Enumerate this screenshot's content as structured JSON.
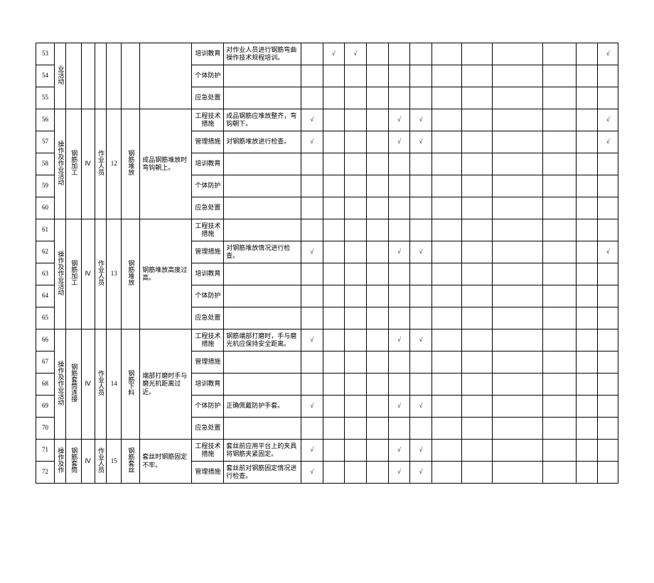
{
  "check": "√",
  "measure_types": {
    "eng": "工程技术措施",
    "mgmt": "管理措施",
    "train": "培训教育",
    "ppe": "个体防护",
    "emerg": "应急处置"
  },
  "common": {
    "activity": "操作及作业活动",
    "activity_short": "业活动",
    "role": "作业人员",
    "lvl": "Ⅳ"
  },
  "groups": [
    {
      "rows": [
        53,
        54,
        55
      ],
      "act_label": "业活动",
      "proc": "",
      "lvl": "",
      "role": "",
      "seq": "",
      "task": "",
      "haz": "",
      "measures": [
        {
          "type": "train",
          "desc": "对作业人员进行钢筋弯曲操作技术规程培训。",
          "checks": [
            0,
            1,
            1,
            0,
            0,
            0,
            0,
            0,
            0,
            0,
            0,
            1
          ]
        },
        {
          "type": "ppe",
          "desc": "",
          "checks": [
            0,
            0,
            0,
            0,
            0,
            0,
            0,
            0,
            0,
            0,
            0,
            0
          ]
        },
        {
          "type": "emerg",
          "desc": "",
          "checks": [
            0,
            0,
            0,
            0,
            0,
            0,
            0,
            0,
            0,
            0,
            0,
            0
          ]
        }
      ]
    },
    {
      "rows": [
        56,
        57,
        58,
        59,
        60
      ],
      "act_label": "操作及作业活动",
      "proc": "钢筋加工",
      "lvl": "Ⅳ",
      "role": "作业人员",
      "seq": "12",
      "task": "钢筋堆放",
      "haz": "成品钢筋堆放时弯钩朝上。",
      "measures": [
        {
          "type": "eng",
          "desc": "成品钢筋应堆放整齐，弯钩朝下。",
          "checks": [
            1,
            0,
            0,
            0,
            1,
            1,
            0,
            0,
            0,
            0,
            0,
            1
          ]
        },
        {
          "type": "mgmt",
          "desc": "对钢筋堆放进行检查。",
          "checks": [
            1,
            0,
            0,
            0,
            1,
            1,
            0,
            0,
            0,
            0,
            0,
            1
          ]
        },
        {
          "type": "train",
          "desc": "",
          "checks": [
            0,
            0,
            0,
            0,
            0,
            0,
            0,
            0,
            0,
            0,
            0,
            0
          ]
        },
        {
          "type": "ppe",
          "desc": "",
          "checks": [
            0,
            0,
            0,
            0,
            0,
            0,
            0,
            0,
            0,
            0,
            0,
            0
          ]
        },
        {
          "type": "emerg",
          "desc": "",
          "checks": [
            0,
            0,
            0,
            0,
            0,
            0,
            0,
            0,
            0,
            0,
            0,
            0
          ]
        }
      ]
    },
    {
      "rows": [
        61,
        62,
        63,
        64,
        65
      ],
      "act_label": "操作及作业活动",
      "proc": "钢筋加工",
      "lvl": "Ⅳ",
      "role": "作业人员",
      "seq": "13",
      "task": "钢筋堆放",
      "haz": "钢筋堆放高度过高。",
      "measures": [
        {
          "type": "eng",
          "desc": "",
          "checks": [
            0,
            0,
            0,
            0,
            0,
            0,
            0,
            0,
            0,
            0,
            0,
            0
          ]
        },
        {
          "type": "mgmt",
          "desc": "对钢筋堆放情况进行检查。",
          "checks": [
            1,
            0,
            0,
            0,
            1,
            1,
            0,
            0,
            0,
            0,
            0,
            1
          ]
        },
        {
          "type": "train",
          "desc": "",
          "checks": [
            0,
            0,
            0,
            0,
            0,
            0,
            0,
            0,
            0,
            0,
            0,
            0
          ]
        },
        {
          "type": "ppe",
          "desc": "",
          "checks": [
            0,
            0,
            0,
            0,
            0,
            0,
            0,
            0,
            0,
            0,
            0,
            0
          ]
        },
        {
          "type": "emerg",
          "desc": "",
          "checks": [
            0,
            0,
            0,
            0,
            0,
            0,
            0,
            0,
            0,
            0,
            0,
            0
          ]
        }
      ]
    },
    {
      "rows": [
        66,
        67,
        68,
        69,
        70
      ],
      "act_label": "操作及作业活动",
      "proc": "钢筋套筒连接",
      "lvl": "Ⅳ",
      "role": "作业人员",
      "seq": "14",
      "task": "钢筋下料",
      "haz": "端部打磨时手与磨光机距离过近。",
      "measures": [
        {
          "type": "eng",
          "desc": "钢筋端部打磨时，手与磨光机应保持安全距离。",
          "checks": [
            1,
            0,
            0,
            0,
            1,
            1,
            0,
            0,
            0,
            0,
            0,
            0
          ]
        },
        {
          "type": "mgmt",
          "desc": "",
          "checks": [
            0,
            0,
            0,
            0,
            0,
            0,
            0,
            0,
            0,
            0,
            0,
            0
          ]
        },
        {
          "type": "train",
          "desc": "",
          "checks": [
            0,
            0,
            0,
            0,
            0,
            0,
            0,
            0,
            0,
            0,
            0,
            0
          ]
        },
        {
          "type": "ppe",
          "desc": "正确佩戴防护手套。",
          "checks": [
            1,
            0,
            0,
            0,
            1,
            1,
            0,
            0,
            0,
            0,
            0,
            0
          ]
        },
        {
          "type": "emerg",
          "desc": "",
          "checks": [
            0,
            0,
            0,
            0,
            0,
            0,
            0,
            0,
            0,
            0,
            0,
            0
          ]
        }
      ]
    },
    {
      "rows": [
        71,
        72
      ],
      "act_label": "操作及作",
      "proc": "钢筋套筒",
      "lvl": "Ⅳ",
      "role": "作业人员",
      "seq": "15",
      "task": "钢筋套丝",
      "haz": "套丝时钢筋固定不牢。",
      "measures": [
        {
          "type": "eng",
          "desc": "套丝前应用平台上的夹具将钢筋夹紧固定。",
          "checks": [
            1,
            0,
            0,
            0,
            1,
            1,
            0,
            0,
            0,
            0,
            0,
            0
          ]
        },
        {
          "type": "mgmt",
          "desc": "套丝前对钢筋固定情况进行检查。",
          "checks": [
            1,
            0,
            0,
            0,
            1,
            1,
            0,
            0,
            0,
            0,
            0,
            0
          ]
        }
      ]
    }
  ]
}
